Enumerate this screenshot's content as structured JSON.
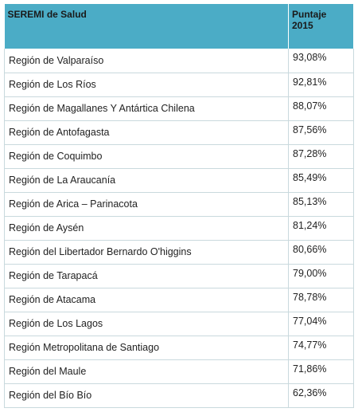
{
  "table": {
    "header": [
      "SEREMI de Salud",
      "Puntaje 2015"
    ],
    "rows": [
      [
        "Región de Valparaíso",
        "93,08%"
      ],
      [
        "Región de Los Ríos",
        "92,81%"
      ],
      [
        "Región de Magallanes Y Antártica Chilena",
        "88,07%"
      ],
      [
        "Región de Antofagasta",
        "87,56%"
      ],
      [
        "Región de Coquimbo",
        "87,28%"
      ],
      [
        "Región de La Araucanía",
        "85,49%"
      ],
      [
        "Región de Arica – Parinacota",
        "85,13%"
      ],
      [
        "Región de Aysén",
        "81,24%"
      ],
      [
        "Región del Libertador Bernardo O'higgins",
        "80,66%"
      ],
      [
        "Región de Tarapacá",
        "79,00%"
      ],
      [
        "Región de Atacama",
        "78,78%"
      ],
      [
        "Región de Los Lagos",
        "77,04%"
      ],
      [
        "Región Metropolitana de Santiago",
        "74,77%"
      ],
      [
        "Región del Maule",
        "71,86%"
      ],
      [
        "Región del Bío Bío",
        "62,36%"
      ]
    ]
  }
}
